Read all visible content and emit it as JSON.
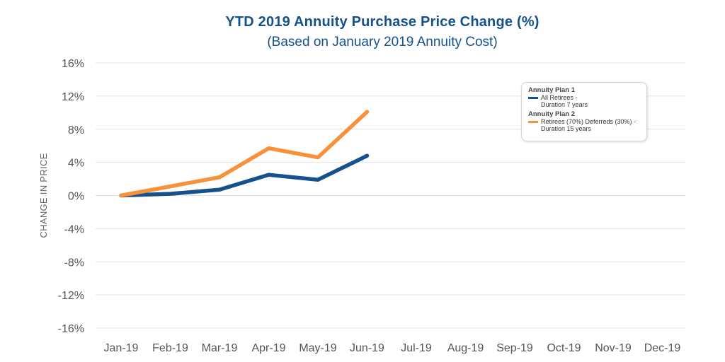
{
  "chart_data": {
    "type": "line",
    "title": "YTD 2019 Annuity Purchase Price Change (%)",
    "subtitle": "(Based on January 2019 Annuity Cost)",
    "xlabel": "",
    "ylabel": "CHANGE IN PRICE",
    "categories": [
      "Jan-19",
      "Feb-19",
      "Mar-19",
      "Apr-19",
      "May-19",
      "Jun-19",
      "Jul-19",
      "Aug-19",
      "Sep-19",
      "Oct-19",
      "Nov-19",
      "Dec-19"
    ],
    "ylim": [
      -16,
      16
    ],
    "yticks": [
      16,
      12,
      8,
      4,
      0,
      -4,
      -8,
      -12,
      -16
    ],
    "ytick_labels": [
      "16%",
      "12%",
      "8%",
      "4%",
      "0%",
      "-4%",
      "-8%",
      "-12%",
      "-16%"
    ],
    "grid": true,
    "legend_position": "top-right",
    "series": [
      {
        "name": "Annuity Plan 1",
        "detail": "All Retirees - Duration 7 years",
        "color": "#15518c",
        "values": [
          0.0,
          0.2,
          0.7,
          2.5,
          1.9,
          4.8,
          null,
          null,
          null,
          null,
          null,
          null
        ]
      },
      {
        "name": "Annuity Plan 2",
        "detail": "Retirees (70%) Deferreds (30%) - Duration 15 years",
        "color": "#f7923a",
        "values": [
          0.0,
          1.1,
          2.2,
          5.7,
          4.6,
          10.1,
          null,
          null,
          null,
          null,
          null,
          null
        ]
      }
    ]
  },
  "legend": {
    "plan1_title": "Annuity Plan 1",
    "plan1_line1": "All Retirees -",
    "plan1_line2": "Duration 7 years",
    "plan2_title": "Annuity Plan 2",
    "plan2_line1": "Retirees (70%) Deferreds (30%) -",
    "plan2_line2": "Duration 15 years"
  },
  "colors": {
    "plan1": "#15518c",
    "plan2": "#f7923a",
    "grid": "#e3e3e3",
    "title": "#15518c"
  }
}
